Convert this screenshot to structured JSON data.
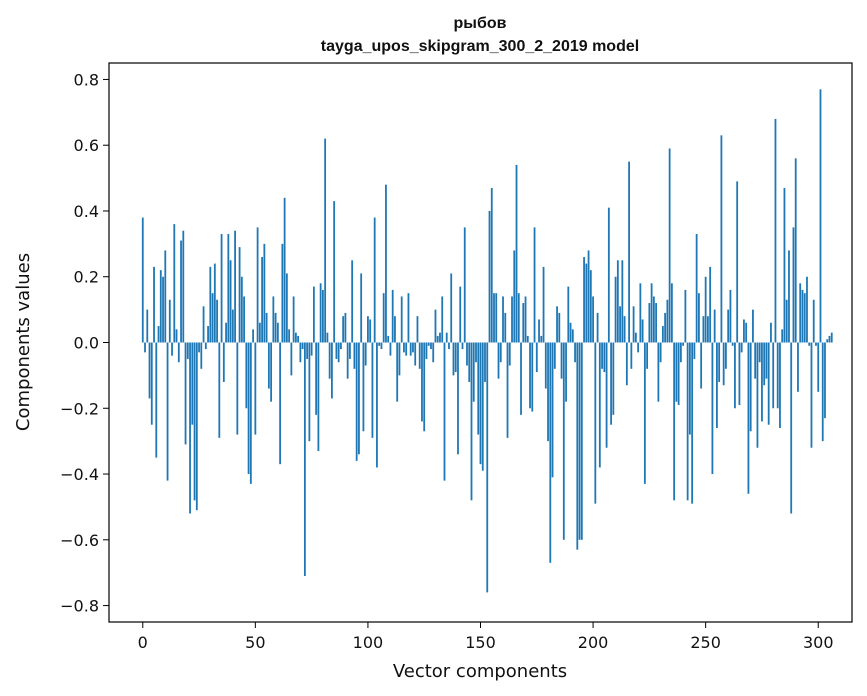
{
  "chart_data": {
    "type": "bar",
    "title_line1": "рыбов",
    "title_line2": "tayga_upos_skipgram_300_2_2019 model",
    "xlabel": "Vector components",
    "ylabel": "Components values",
    "xlim": [
      -15,
      315
    ],
    "ylim": [
      -0.85,
      0.85
    ],
    "xticks": [
      0,
      50,
      100,
      150,
      200,
      250,
      300
    ],
    "xtick_labels": [
      "0",
      "50",
      "100",
      "150",
      "200",
      "250",
      "300"
    ],
    "yticks": [
      0.8,
      0.6,
      0.4,
      0.2,
      0.0,
      -0.2,
      -0.4,
      -0.6,
      -0.8
    ],
    "ytick_labels": [
      "0.8",
      "0.6",
      "0.4",
      "0.2",
      "0.0",
      "−0.2",
      "−0.4",
      "−0.6",
      "−0.8"
    ],
    "bar_color": "#1f77b4",
    "values": [
      0.38,
      -0.03,
      0.1,
      -0.17,
      -0.25,
      0.23,
      -0.35,
      0.05,
      0.22,
      0.2,
      0.28,
      -0.42,
      0.13,
      -0.04,
      0.36,
      0.04,
      -0.06,
      0.31,
      0.34,
      -0.31,
      -0.05,
      -0.52,
      -0.25,
      -0.48,
      -0.51,
      -0.03,
      -0.08,
      0.11,
      -0.02,
      0.05,
      0.23,
      0.15,
      0.24,
      0.13,
      -0.29,
      0.33,
      -0.12,
      0.06,
      0.33,
      0.25,
      0.1,
      0.34,
      -0.28,
      0.29,
      0.2,
      0.14,
      -0.2,
      -0.4,
      -0.43,
      0.04,
      -0.28,
      0.35,
      0.06,
      0.26,
      0.3,
      0.09,
      -0.14,
      -0.18,
      0.14,
      0.09,
      0.06,
      -0.37,
      0.3,
      0.44,
      0.21,
      0.04,
      -0.1,
      0.14,
      0.03,
      0.02,
      -0.06,
      -0.02,
      -0.71,
      -0.05,
      -0.3,
      -0.04,
      0.17,
      -0.22,
      -0.33,
      0.18,
      0.16,
      0.62,
      0.03,
      -0.11,
      -0.17,
      0.43,
      -0.05,
      -0.06,
      -0.02,
      0.08,
      0.09,
      -0.11,
      -0.05,
      0.25,
      -0.08,
      -0.36,
      -0.34,
      0.21,
      -0.27,
      -0.07,
      0.08,
      0.07,
      -0.29,
      0.38,
      -0.38,
      -0.01,
      -0.02,
      0.15,
      0.48,
      0.02,
      -0.04,
      0.16,
      0.08,
      -0.18,
      -0.1,
      0.14,
      -0.03,
      -0.04,
      0.15,
      -0.04,
      -0.03,
      -0.07,
      0.08,
      -0.08,
      -0.24,
      -0.27,
      -0.05,
      -0.01,
      -0.02,
      -0.06,
      0.1,
      0.02,
      0.03,
      0.14,
      -0.42,
      0.03,
      -0.02,
      0.21,
      -0.1,
      -0.09,
      -0.34,
      0.17,
      -0.02,
      0.35,
      -0.07,
      -0.12,
      -0.48,
      -0.18,
      -0.06,
      -0.28,
      -0.37,
      -0.39,
      -0.12,
      -0.76,
      0.4,
      0.47,
      0.15,
      0.15,
      -0.11,
      -0.06,
      0.14,
      0.09,
      -0.29,
      -0.07,
      0.14,
      0.28,
      0.54,
      0.15,
      -0.22,
      0.12,
      0.14,
      0.02,
      -0.2,
      -0.21,
      0.35,
      -0.09,
      0.07,
      0.02,
      0.23,
      -0.14,
      -0.3,
      -0.67,
      -0.41,
      -0.08,
      0.11,
      0.09,
      -0.11,
      -0.6,
      -0.18,
      0.17,
      0.06,
      0.04,
      -0.06,
      -0.63,
      -0.6,
      -0.6,
      0.26,
      0.24,
      0.28,
      0.22,
      0.14,
      -0.49,
      0.09,
      -0.38,
      -0.08,
      -0.09,
      -0.32,
      0.41,
      -0.25,
      -0.22,
      0.2,
      0.25,
      0.11,
      0.25,
      0.08,
      -0.13,
      0.55,
      -0.08,
      0.11,
      0.03,
      -0.03,
      0.18,
      0.07,
      -0.43,
      -0.08,
      0.12,
      0.18,
      0.14,
      0.12,
      -0.18,
      -0.06,
      0.05,
      0.09,
      0.13,
      0.59,
      0.18,
      -0.48,
      -0.18,
      -0.19,
      -0.06,
      -0.01,
      0.16,
      -0.48,
      -0.28,
      -0.49,
      -0.05,
      0.33,
      0.15,
      -0.14,
      0.08,
      0.2,
      0.08,
      0.23,
      -0.4,
      0.1,
      -0.26,
      -0.12,
      0.63,
      -0.13,
      -0.08,
      0.1,
      0.16,
      -0.01,
      -0.2,
      0.49,
      -0.19,
      -0.03,
      0.07,
      0.06,
      -0.46,
      -0.27,
      0.1,
      -0.11,
      -0.32,
      -0.06,
      -0.24,
      -0.13,
      -0.11,
      -0.25,
      0.06,
      -0.2,
      0.68,
      -0.2,
      -0.26,
      0.04,
      0.47,
      0.13,
      0.28,
      -0.52,
      0.35,
      0.56,
      -0.15,
      0.18,
      0.16,
      0.15,
      0.2,
      -0.01,
      -0.32,
      0.13,
      -0.01,
      -0.15,
      0.77,
      -0.3,
      -0.23,
      0.01,
      0.02,
      0.03
    ]
  }
}
